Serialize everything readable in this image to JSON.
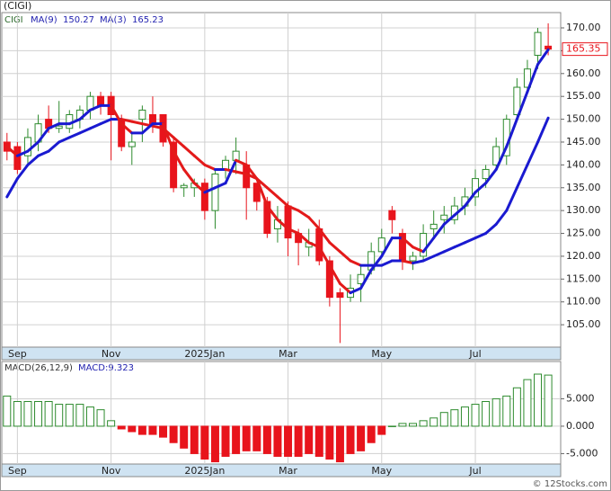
{
  "chart_data": [
    {
      "type": "candlestick",
      "title": "(CIGI)",
      "ticker": "CIGI",
      "open": [
        145,
        144,
        142,
        145,
        150,
        148,
        148,
        150,
        152,
        155,
        155,
        150,
        144,
        150,
        151,
        151,
        145,
        135,
        135,
        136,
        130,
        139,
        141,
        140,
        136,
        132,
        126,
        131,
        125,
        122,
        126,
        119,
        112,
        111,
        114,
        117,
        121,
        130,
        125,
        119,
        120,
        126,
        128,
        128,
        131,
        133,
        137,
        140,
        142,
        151,
        157,
        164,
        166
      ],
      "high": [
        147,
        145,
        148,
        151,
        153,
        154,
        152,
        153,
        156,
        156,
        156,
        151,
        147,
        153,
        155,
        151,
        146,
        136,
        137,
        137,
        139,
        142,
        146,
        143,
        136,
        133,
        131,
        132,
        126,
        126,
        128,
        120,
        113,
        116,
        118,
        123,
        126,
        131,
        126,
        121,
        127,
        130,
        131,
        133,
        135,
        139,
        140,
        146,
        151,
        159,
        163,
        170,
        171
      ],
      "low": [
        141,
        138,
        140,
        143,
        147,
        147,
        147,
        148,
        150,
        151,
        141,
        143,
        140,
        145,
        147,
        144,
        134,
        133,
        133,
        128,
        126,
        137,
        138,
        128,
        130,
        124,
        123,
        120,
        118,
        120,
        118,
        109,
        101,
        110,
        110,
        116,
        120,
        125,
        117,
        117,
        119,
        124,
        125,
        127,
        129,
        131,
        135,
        139,
        140,
        150,
        156,
        161,
        164
      ],
      "close": [
        143,
        139,
        146,
        149,
        148,
        148.5,
        151,
        152,
        155,
        153,
        151,
        144,
        145,
        152,
        149,
        145,
        135,
        135.5,
        136,
        130,
        138,
        141,
        143,
        135,
        132,
        125,
        128,
        124,
        123,
        123,
        119,
        111,
        111,
        113,
        116,
        121,
        124,
        128,
        119,
        120,
        125,
        127,
        129,
        131,
        133,
        137,
        139,
        144,
        150,
        157,
        161,
        169,
        165.35
      ],
      "up_color": "#2e8b2e",
      "down_color": "#e8141c",
      "series": [
        {
          "name": "MA(9)",
          "values": [
            133,
            137,
            140,
            142,
            143,
            145,
            146,
            147,
            148,
            149,
            150,
            150,
            149.5,
            149,
            148.5,
            148,
            146,
            144,
            142,
            140,
            139,
            139,
            138.5,
            138,
            137,
            135,
            133,
            131,
            130,
            128.5,
            126,
            123,
            121,
            119,
            118,
            118,
            118,
            119,
            119,
            118.5,
            119,
            120,
            121,
            122,
            123,
            124,
            125,
            127,
            130,
            135,
            140,
            145,
            150.27
          ]
        },
        {
          "name": "MA(3)",
          "values": [
            144,
            142,
            143,
            145,
            148,
            149,
            149,
            150,
            152,
            153,
            153,
            149,
            147,
            147,
            149,
            149,
            143,
            139,
            136,
            134,
            135,
            136,
            141,
            140,
            137,
            131,
            128,
            126,
            125,
            123,
            122,
            118,
            114,
            112,
            113,
            117,
            120,
            124,
            124,
            122,
            121,
            124,
            127,
            129,
            131,
            134,
            136,
            139,
            144,
            150,
            156,
            162,
            165.23
          ]
        }
      ],
      "ma_up_color": "#1a1ad0",
      "ma_down_color": "#e31a1a",
      "xlim": [
        -0.5,
        53.2
      ],
      "xticks": [
        {
          "value": 1,
          "label": "Sep"
        },
        {
          "value": 10,
          "label": "Nov"
        },
        {
          "value": 19,
          "label": "2025Jan"
        },
        {
          "value": 27,
          "label": "Mar"
        },
        {
          "value": 36,
          "label": "May"
        },
        {
          "value": 45,
          "label": "Jul"
        }
      ],
      "ylim": [
        100.1,
        173.35
      ],
      "yticks": [
        {
          "value": 105,
          "label": "105.00"
        },
        {
          "value": 110,
          "label": "110.00"
        },
        {
          "value": 115,
          "label": "115.00"
        },
        {
          "value": 120,
          "label": "120.00"
        },
        {
          "value": 125,
          "label": "125.00"
        },
        {
          "value": 130,
          "label": "130.00"
        },
        {
          "value": 135,
          "label": "135.00"
        },
        {
          "value": 140,
          "label": "140.00"
        },
        {
          "value": 145,
          "label": "145.00"
        },
        {
          "value": 150,
          "label": "150.00"
        },
        {
          "value": 155,
          "label": "155.00"
        },
        {
          "value": 160,
          "label": "160.00"
        },
        {
          "value": 165,
          "label": "165.00"
        },
        {
          "value": 170,
          "label": "170.00"
        }
      ],
      "grid": true
    },
    {
      "type": "bar",
      "name": "MACD(26,12,9)",
      "last_label": "MACD:9.323",
      "values": [
        5.5,
        4.5,
        4.5,
        4.5,
        4.5,
        4,
        4,
        4,
        3.5,
        3,
        1,
        -0.5,
        -1,
        -1.5,
        -1.5,
        -2,
        -3,
        -4,
        -5,
        -6,
        -6.5,
        -5.5,
        -5,
        -4.5,
        -4.5,
        -5,
        -5.5,
        -5.5,
        -5.5,
        -5,
        -5.5,
        -6,
        -6.5,
        -5,
        -4.5,
        -3,
        -1.5,
        0,
        0.5,
        0.5,
        1,
        1.5,
        2.5,
        3,
        3.5,
        4,
        4.5,
        5,
        5.5,
        7,
        8.5,
        9.5,
        9.323
      ],
      "up_color": "#2e8b2e",
      "down_color": "#e8141c",
      "xlim": [
        -0.5,
        53.2
      ],
      "xticks": [
        {
          "value": 1,
          "label": "Sep"
        },
        {
          "value": 10,
          "label": "Nov"
        },
        {
          "value": 19,
          "label": "2025Jan"
        },
        {
          "value": 27,
          "label": "Mar"
        },
        {
          "value": 36,
          "label": "May"
        },
        {
          "value": 45,
          "label": "Jul"
        }
      ],
      "ylim": [
        -6.9,
        11.8
      ],
      "yticks": [
        {
          "value": -5,
          "label": "-5.000"
        },
        {
          "value": 0,
          "label": "0.000"
        },
        {
          "value": 5,
          "label": "5.000"
        }
      ],
      "grid": true
    }
  ],
  "footer": "© 12Stocks.com"
}
